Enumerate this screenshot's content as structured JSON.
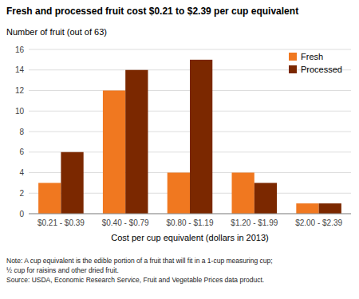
{
  "chart_data": {
    "type": "bar",
    "title": "Fresh and processed fruit cost $0.21 to $2.39 per cup equivalent",
    "y_label": "Number of fruit (out of 63)",
    "x_label": "Cost per cup equivalent (dollars in 2013)",
    "categories": [
      "$0.21 - $0.39",
      "$0.40 - $0.79",
      "$0.80 - $1.19",
      "$1.20 - $1.99",
      "$2.00 - $2.39"
    ],
    "series": [
      {
        "name": "Fresh",
        "color": "#F07820",
        "values": [
          3,
          12,
          4,
          4,
          1
        ]
      },
      {
        "name": "Processed",
        "color": "#7B2800",
        "values": [
          6,
          14,
          15,
          3,
          1
        ]
      }
    ],
    "ylim": [
      0,
      16
    ],
    "yticks": [
      0,
      2,
      4,
      6,
      8,
      10,
      12,
      14,
      16
    ],
    "grid": true,
    "legend": "upper right",
    "annotations": [
      "Note: A cup equivalent is the edible portion of a fruit that will fit in a 1-cup measuring cup;",
      "½ cup for raisins and other dried fruit.",
      "Source: USDA, Economic Research Service, Fruit and Vegetable Prices data product."
    ]
  }
}
